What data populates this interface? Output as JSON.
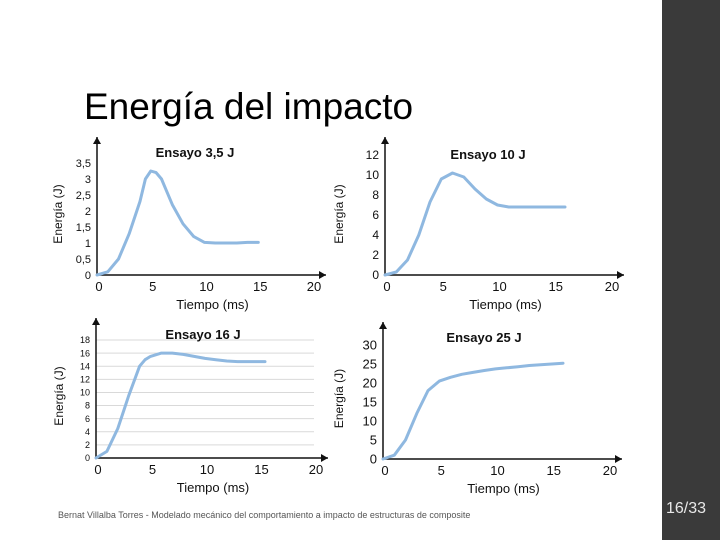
{
  "slide": {
    "title": "Energía del impacto",
    "footer": "Bernat Villalba Torres - Modelado mecánico del comportamiento a impacto de estructuras de composite",
    "page": "16/33"
  },
  "colors": {
    "line": "#8fb8e0",
    "axis": "#111111",
    "grid": "#d9d9d9",
    "sidebar": "#3a3a3a"
  },
  "chart_data": [
    {
      "type": "line",
      "title": "Ensayo 3,5 J",
      "xlabel": "Tiempo (ms)",
      "ylabel": "Energía (J)",
      "xlim": [
        0,
        20
      ],
      "ylim": [
        0,
        3.5
      ],
      "xticks": [
        "0",
        "5",
        "10",
        "15",
        "20"
      ],
      "yticks": [
        "0",
        "0,5",
        "1",
        "1,5",
        "2",
        "2,5",
        "3",
        "3,5"
      ],
      "grid": false,
      "series": [
        {
          "x": [
            0,
            1,
            2,
            3,
            4,
            4.5,
            5,
            5.5,
            6,
            6.5,
            7,
            8,
            9,
            10,
            11,
            12,
            13,
            14,
            15
          ],
          "y": [
            0,
            0.1,
            0.5,
            1.3,
            2.3,
            3.0,
            3.25,
            3.2,
            3.0,
            2.6,
            2.2,
            1.6,
            1.2,
            1.02,
            1.0,
            1.0,
            1.0,
            1.02,
            1.02
          ]
        }
      ]
    },
    {
      "type": "line",
      "title": "Ensayo 10 J",
      "xlabel": "Tiempo (ms)",
      "ylabel": "Energía (J)",
      "xlim": [
        0,
        20
      ],
      "ylim": [
        0,
        12
      ],
      "xticks": [
        "0",
        "5",
        "10",
        "15",
        "20"
      ],
      "yticks": [
        "0",
        "2",
        "4",
        "6",
        "8",
        "10",
        "12"
      ],
      "grid": false,
      "series": [
        {
          "x": [
            0,
            1,
            2,
            3,
            4,
            5,
            6,
            7,
            8,
            9,
            10,
            11,
            12,
            13,
            14,
            15,
            16
          ],
          "y": [
            0,
            0.3,
            1.5,
            4.0,
            7.3,
            9.6,
            10.2,
            9.8,
            8.6,
            7.6,
            7.0,
            6.8,
            6.8,
            6.8,
            6.8,
            6.8,
            6.8
          ]
        }
      ]
    },
    {
      "type": "line",
      "title": "Ensayo 16 J",
      "xlabel": "Tiempo (ms)",
      "ylabel": "Energía (J)",
      "xlim": [
        0,
        20
      ],
      "ylim": [
        0,
        18
      ],
      "xticks": [
        "0",
        "5",
        "10",
        "15",
        "20"
      ],
      "yticks": [
        "0",
        "2",
        "4",
        "6",
        "8",
        "10",
        "12",
        "14",
        "16",
        "18"
      ],
      "grid": true,
      "series": [
        {
          "x": [
            0,
            1,
            2,
            3,
            4,
            4.5,
            5,
            6,
            7,
            8,
            9,
            10,
            11,
            12,
            13,
            14,
            15,
            15.5
          ],
          "y": [
            0,
            1.0,
            4.5,
            9.5,
            14.0,
            15.0,
            15.5,
            16.0,
            16.0,
            15.8,
            15.5,
            15.2,
            15.0,
            14.8,
            14.7,
            14.7,
            14.7,
            14.7
          ]
        }
      ]
    },
    {
      "type": "line",
      "title": "Ensayo 25 J",
      "xlabel": "Tiempo (ms)",
      "ylabel": "Energía (J)",
      "xlim": [
        0,
        20
      ],
      "ylim": [
        0,
        30
      ],
      "xticks": [
        "0",
        "5",
        "10",
        "15",
        "20"
      ],
      "yticks": [
        "0",
        "5",
        "10",
        "15",
        "20",
        "25",
        "30"
      ],
      "grid": false,
      "series": [
        {
          "x": [
            0,
            1,
            2,
            3,
            4,
            5,
            6,
            7,
            8,
            9,
            10,
            11,
            12,
            13,
            14,
            15,
            16
          ],
          "y": [
            0,
            1.0,
            5.0,
            12.0,
            18.0,
            20.5,
            21.5,
            22.3,
            22.8,
            23.3,
            23.7,
            24.0,
            24.3,
            24.6,
            24.8,
            25.0,
            25.2
          ]
        }
      ]
    }
  ]
}
